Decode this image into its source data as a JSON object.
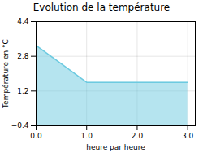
{
  "chart_data": {
    "type": "area",
    "title": "Evolution de la température",
    "xlabel": "heure par heure",
    "ylabel": "Température en °C",
    "x": [
      0,
      1,
      1,
      3
    ],
    "values": [
      3.3,
      1.6,
      1.6,
      1.6
    ],
    "color": "#6ccae0",
    "xlim": [
      0,
      3.15
    ],
    "ylim": [
      -0.4,
      4.4
    ],
    "xticks": [
      0,
      1,
      2,
      3
    ],
    "yticks": [
      -0.4,
      1.2,
      2.8,
      4.4
    ],
    "grid": true
  }
}
